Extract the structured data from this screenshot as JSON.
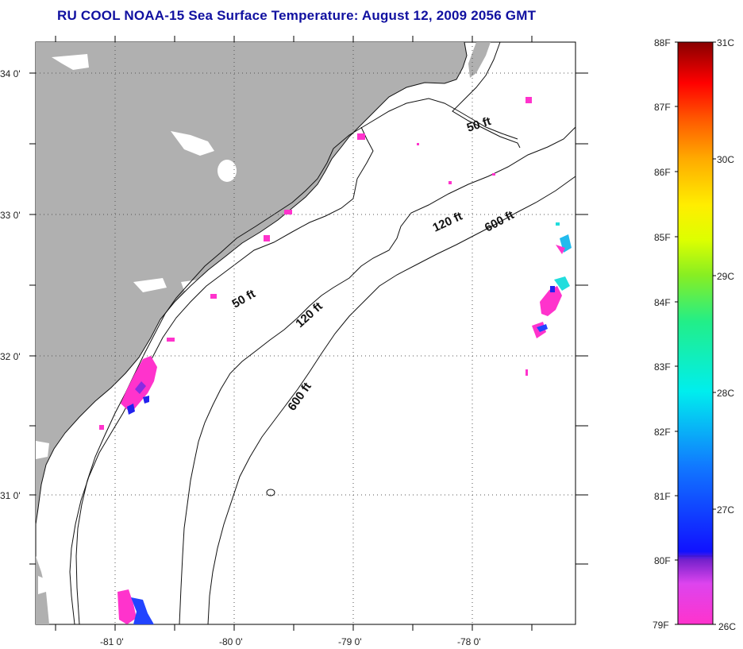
{
  "title": "RU COOL  NOAA-15  Sea Surface Temperature:  August 12, 2009 2056 GMT",
  "axes": {
    "lat_labels": [
      "34 0'",
      "33 0'",
      "32 0'",
      "31 0'"
    ],
    "lon_labels": [
      "-81 0'",
      "-80 0'",
      "-79 0'",
      "-78 0'"
    ]
  },
  "contour_labels": {
    "c50_north": "50 ft",
    "c50_south": "50 ft",
    "c120_north": "120 ft",
    "c120_south": "120 ft",
    "c600_north": "600 ft",
    "c600_south": "600 ft"
  },
  "colorbar": {
    "fahrenheit": [
      "88F",
      "87F",
      "86F",
      "85F",
      "84F",
      "83F",
      "82F",
      "81F",
      "80F",
      "79F"
    ],
    "celsius": [
      "31C",
      "30C",
      "29C",
      "28C",
      "27C",
      "26C"
    ]
  },
  "colors": {
    "title": "#1010a0",
    "land": "#b0b0b0",
    "grid": "#555555"
  }
}
